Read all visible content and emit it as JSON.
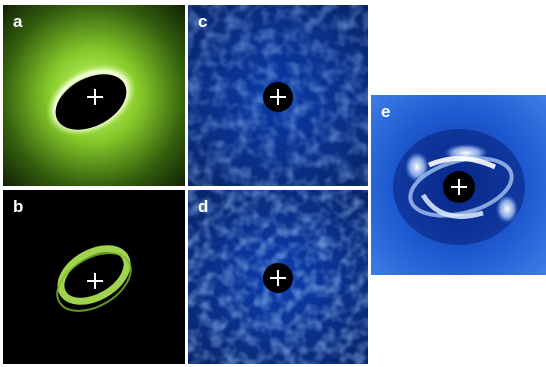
{
  "figure": {
    "panels": [
      {
        "id": "a",
        "label": "a",
        "colormap": "green-on-black"
      },
      {
        "id": "b",
        "label": "b",
        "colormap": "green-on-black"
      },
      {
        "id": "c",
        "label": "c",
        "colormap": "blue"
      },
      {
        "id": "d",
        "label": "d",
        "colormap": "blue"
      },
      {
        "id": "e",
        "label": "e",
        "colormap": "blue-white"
      }
    ],
    "colors": {
      "green_bright": "#e9ffb4",
      "green_mid": "#7dbb2a",
      "green_dark": "#1d3a06",
      "blue_bg": "#0a2f86",
      "blue_mid": "#1e5ad0",
      "blue_light": "#7fb4ff",
      "black": "#000000",
      "white": "#ffffff"
    },
    "marker": "crosshair"
  }
}
